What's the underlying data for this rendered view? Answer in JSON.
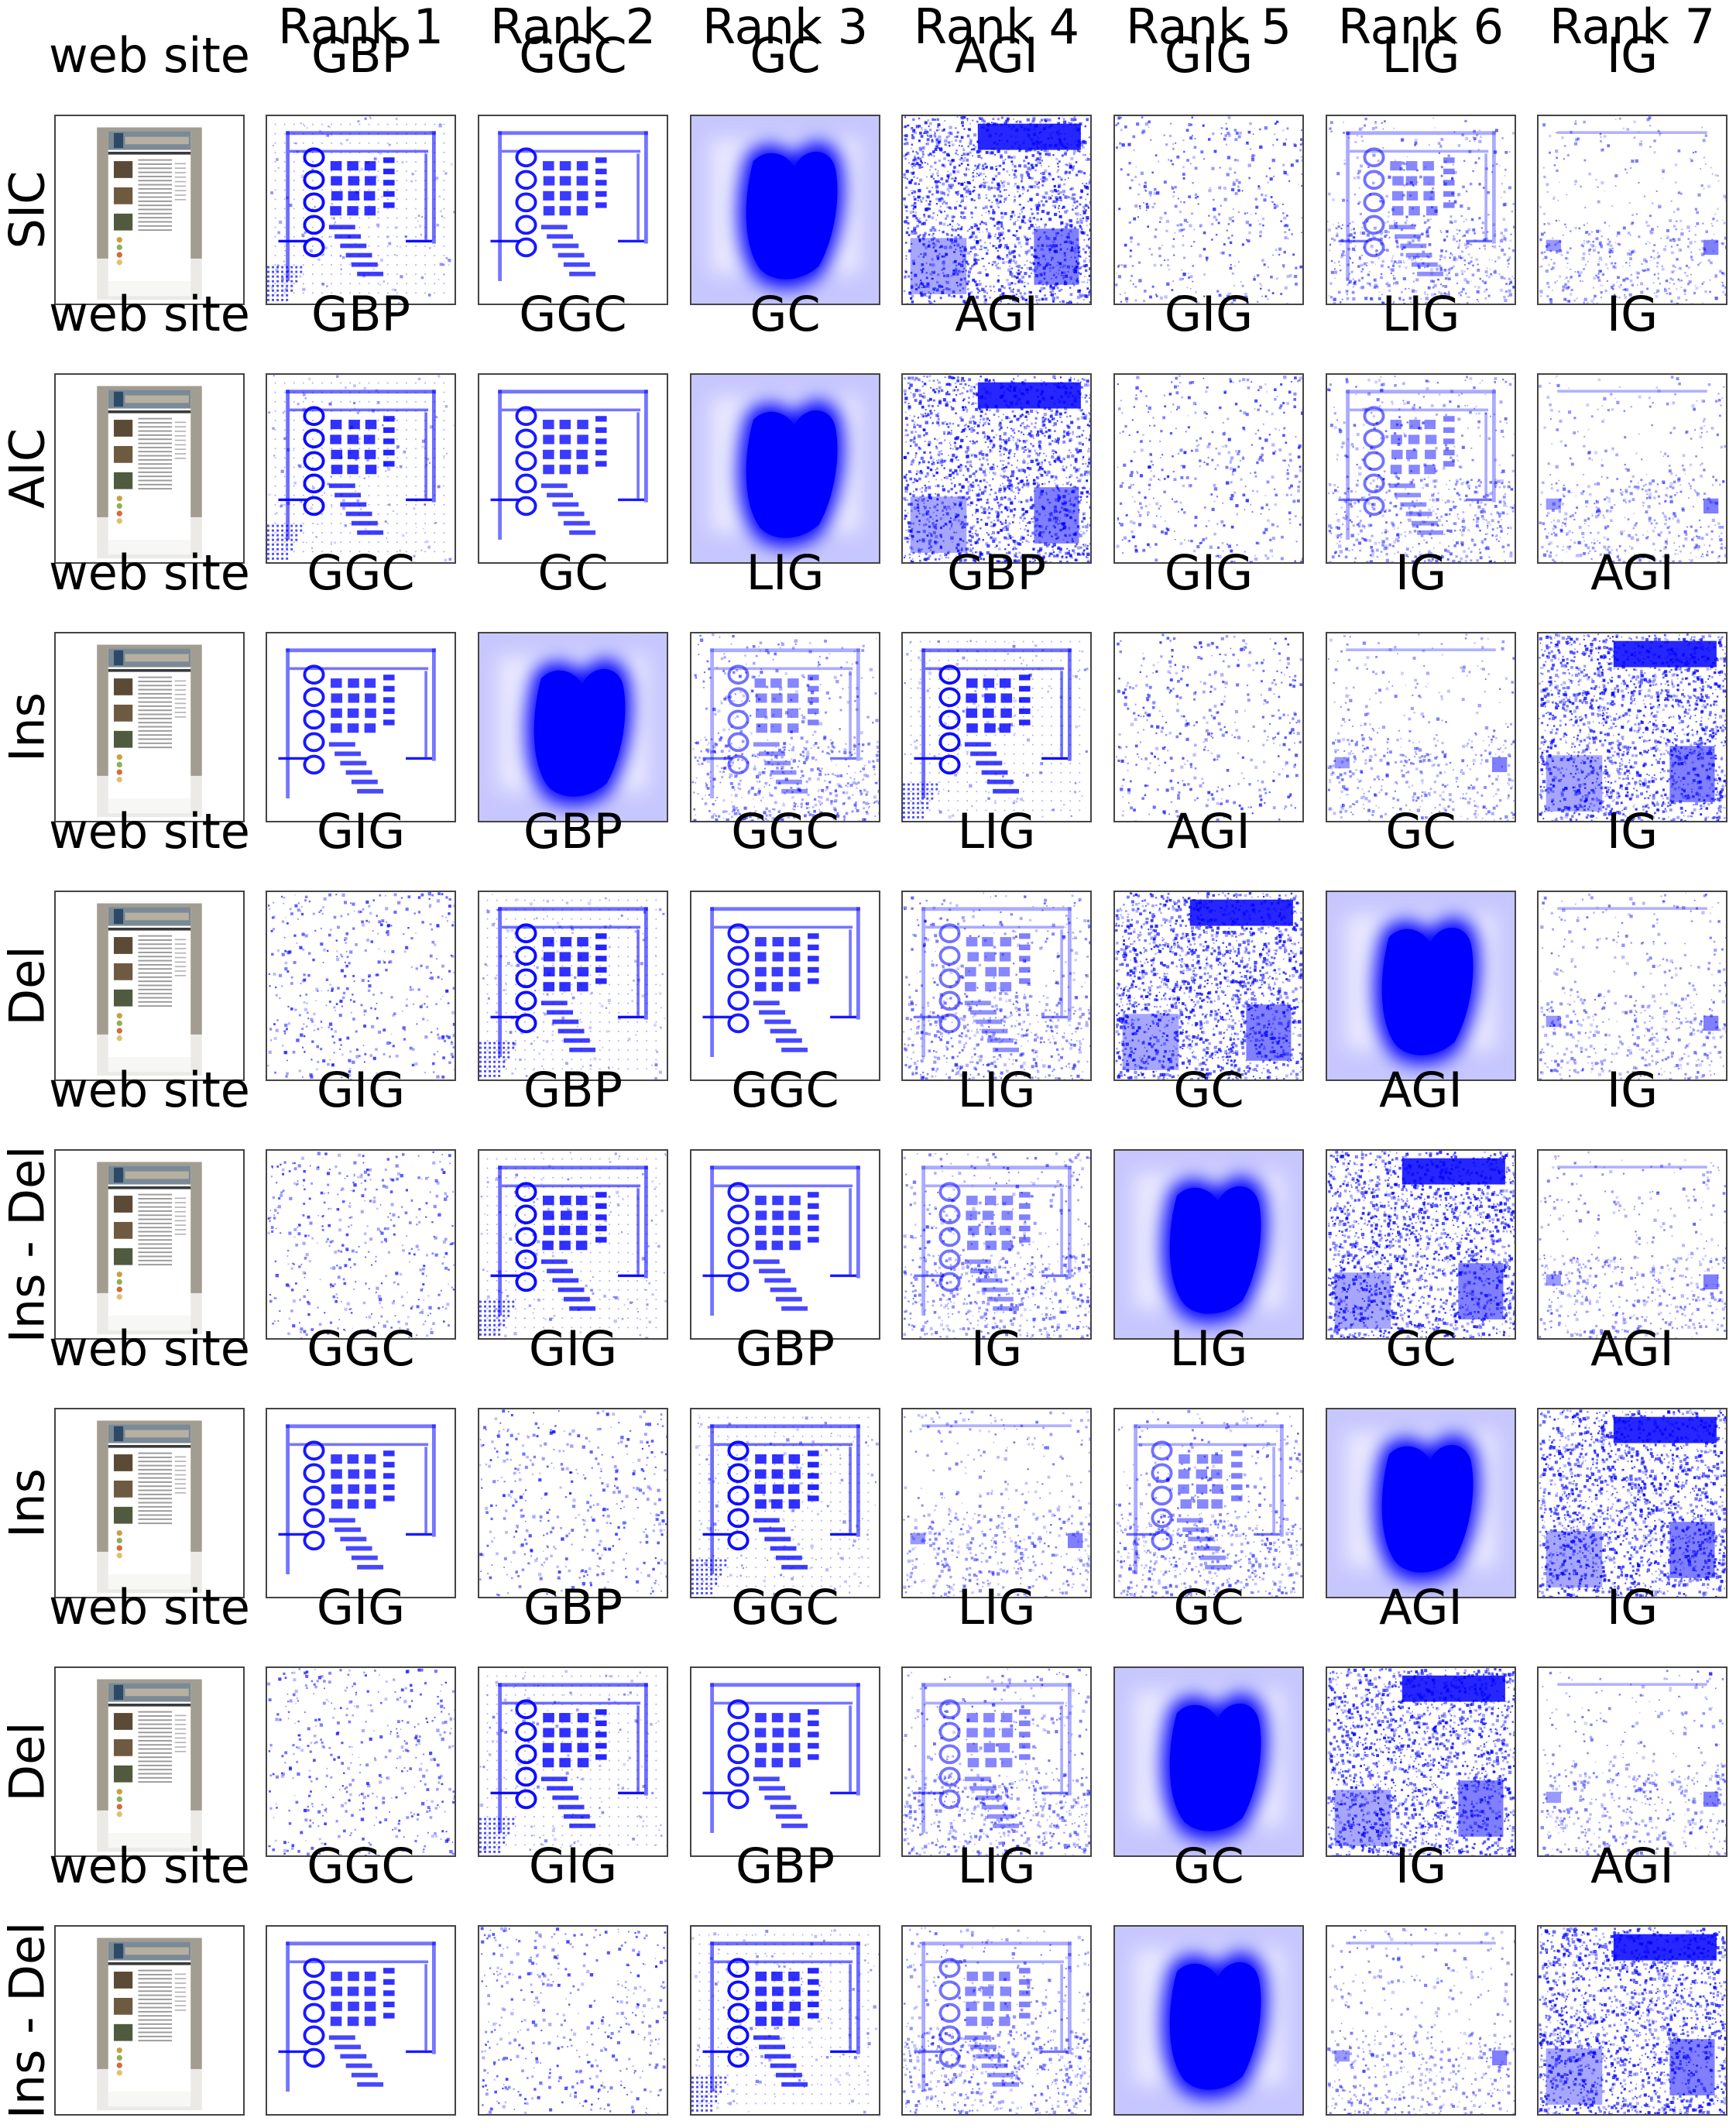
{
  "column_headers": [
    "Rank 1",
    "Rank 2",
    "Rank 3",
    "Rank 4",
    "Rank 5",
    "Rank 6",
    "Rank 7"
  ],
  "input_label": "web site",
  "heatmap_color": "#0000ff",
  "rows": [
    {
      "label": "SIC",
      "methods": [
        "GBP",
        "GGC",
        "GC",
        "AGI",
        "GIG",
        "LIG",
        "IG"
      ]
    },
    {
      "label": "AIC",
      "methods": [
        "GBP",
        "GGC",
        "GC",
        "AGI",
        "GIG",
        "LIG",
        "IG"
      ]
    },
    {
      "label": "Ins",
      "methods": [
        "GGC",
        "GC",
        "LIG",
        "GBP",
        "GIG",
        "IG",
        "AGI"
      ]
    },
    {
      "label": "Del",
      "methods": [
        "GIG",
        "GBP",
        "GGC",
        "LIG",
        "AGI",
        "GC",
        "IG"
      ]
    },
    {
      "label": "Ins - Del",
      "methods": [
        "GIG",
        "GBP",
        "GGC",
        "LIG",
        "GC",
        "AGI",
        "IG"
      ]
    },
    {
      "label": "Ins",
      "methods": [
        "GGC",
        "GIG",
        "GBP",
        "IG",
        "LIG",
        "GC",
        "AGI"
      ]
    },
    {
      "label": "Del",
      "methods": [
        "GIG",
        "GBP",
        "GGC",
        "LIG",
        "GC",
        "AGI",
        "IG"
      ]
    },
    {
      "label": "Ins - Del",
      "methods": [
        "GGC",
        "GIG",
        "GBP",
        "LIG",
        "GC",
        "IG",
        "AGI"
      ]
    }
  ]
}
